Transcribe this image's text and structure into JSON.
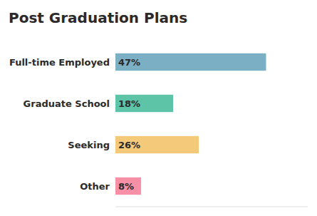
{
  "chart_data": {
    "type": "bar",
    "orientation": "horizontal",
    "title": "Post Graduation Plans",
    "categories": [
      "Full-time Employed",
      "Graduate School",
      "Seeking",
      "Other"
    ],
    "values": [
      47,
      18,
      26,
      8
    ],
    "value_labels": [
      "47%",
      "18%",
      "26%",
      "8%"
    ],
    "colors": [
      "#7BAFC4",
      "#5DC4A8",
      "#F5C97A",
      "#F78FA7"
    ],
    "xlim": [
      0,
      60
    ],
    "data_labels": true,
    "tick_labels": false,
    "grid": false
  }
}
